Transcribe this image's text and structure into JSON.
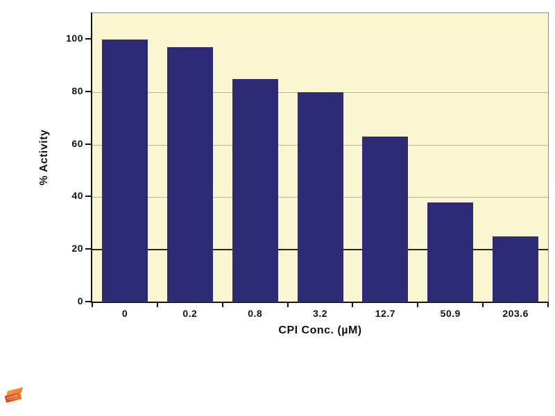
{
  "chart_data": {
    "type": "bar",
    "categories": [
      "0",
      "0.2",
      "0.8",
      "3.2",
      "12.7",
      "50.9",
      "203.6"
    ],
    "values": [
      100,
      97,
      85,
      80,
      63,
      38,
      25
    ],
    "title": "",
    "xlabel": "CPI Conc. (µM)",
    "ylabel": "% Activity",
    "ylim": [
      0,
      110
    ],
    "yticks": [
      0,
      20,
      40,
      60,
      80,
      100
    ],
    "gridlines_light": [
      40,
      60,
      80
    ],
    "gridlines_dark": [
      20
    ],
    "legend": "none",
    "colors": {
      "bar": "#2d2a76",
      "plot_background": "#faf6d0",
      "page_background": "#ffffff",
      "grid_light": "#b3b2a4",
      "grid_dark": "#24241f",
      "axis": "#111111",
      "logo_orange": "#ef5a1e"
    }
  },
  "icons": {
    "logo": "orange-brick-logo"
  }
}
